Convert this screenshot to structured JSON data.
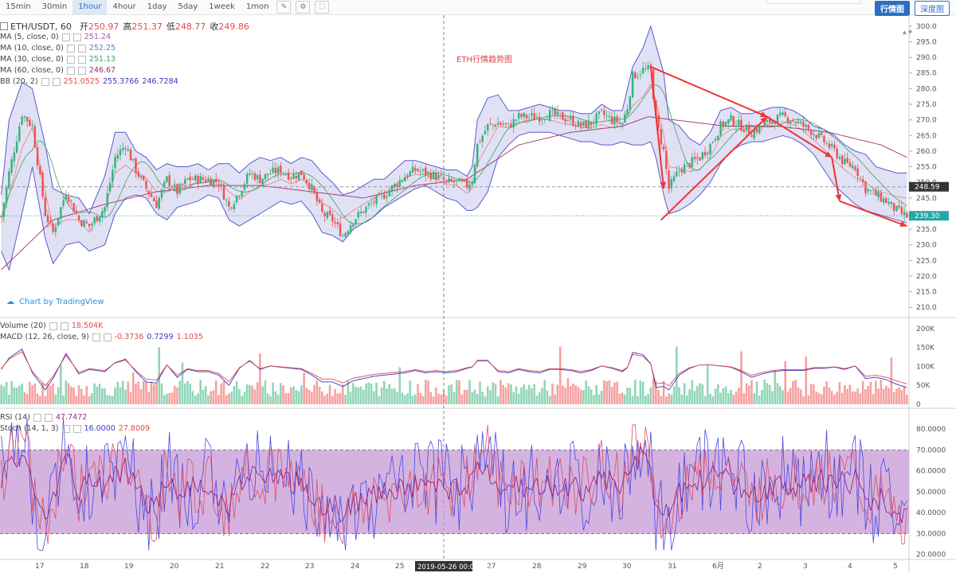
{
  "toolbar": {
    "timeframes": [
      {
        "label": "15min",
        "active": false
      },
      {
        "label": "30min",
        "active": false
      },
      {
        "label": "1hour",
        "active": true
      },
      {
        "label": "4hour",
        "active": false
      },
      {
        "label": "1day",
        "active": false
      },
      {
        "label": "5day",
        "active": false
      },
      {
        "label": "1week",
        "active": false
      },
      {
        "label": "1mon",
        "active": false
      }
    ],
    "icons": [
      "pencil-icon",
      "gear-icon",
      "fullscreen-icon"
    ],
    "right_tabs": [
      {
        "label": "行情图",
        "active": true
      },
      {
        "label": "深度图",
        "active": false
      }
    ]
  },
  "header": {
    "symbol": "ETH/USDT, 60",
    "open_label": "开",
    "open": "250.97",
    "high_label": "高",
    "high": "251.37",
    "low_label": "低",
    "low": "248.77",
    "close_label": "收",
    "close": "249.86"
  },
  "indicators": [
    {
      "name": "MA (5, close, 0)",
      "value": "251.24",
      "color": "#9b59b6"
    },
    {
      "name": "MA (10, close, 0)",
      "value": "252.25",
      "color": "#5a86c4"
    },
    {
      "name": "MA (30, close, 0)",
      "value": "251.13",
      "color": "#3aa55a"
    },
    {
      "name": "MA (60, close, 0)",
      "value": "246.67",
      "color": "#a0306a"
    },
    {
      "name": "BB (20, 2)",
      "values": [
        "251.0525",
        "255.3766",
        "246.7284"
      ],
      "colors": [
        "#e24b4b",
        "#3a3ac4",
        "#3a3ac4"
      ]
    }
  ],
  "volume_legend": {
    "name": "Volume (20)",
    "value": "18.504K",
    "color": "#e24b4b"
  },
  "macd_legend": {
    "name": "MACD (12, 26, close, 9)",
    "values": [
      "-0.3736",
      "0.7299",
      "1.1035"
    ],
    "colors": [
      "#e24b4b",
      "#3a3ac4",
      "#e24b4b"
    ]
  },
  "rsi_legend": {
    "name": "RSI (14)",
    "value": "47.7472",
    "color": "#9b2a8a"
  },
  "stoch_legend": {
    "name": "Stoch (14, 1, 3)",
    "values": [
      "16.0000",
      "27.8009"
    ],
    "colors": [
      "#3a3ac4",
      "#e24b4b"
    ]
  },
  "annotation": "ETH行情趋势图",
  "brand": "Chart by TradingView",
  "price_tags": {
    "hline": "248.59",
    "last": "239.30"
  },
  "crosshair_label": "2019-05-26 00:00:00",
  "colors": {
    "up": "#36b37e",
    "down": "#ef5350",
    "band_fill": "#c9c9ec",
    "band_line": "#5a5ad0",
    "rsi_fill": "#c79ad6",
    "trend": "#ee3333",
    "teal_line": "#2aa6a6"
  },
  "chart_data": {
    "type": "candlestick",
    "x_labels": [
      "17",
      "18",
      "19",
      "20",
      "21",
      "22",
      "23",
      "24",
      "25",
      "26",
      "27",
      "28",
      "29",
      "30",
      "31",
      "6月",
      "2",
      "3",
      "4",
      "5"
    ],
    "price_axis": {
      "ticks": [
        210,
        215,
        220,
        225,
        230,
        235,
        240,
        245,
        250,
        255,
        260,
        265,
        270,
        275,
        280,
        285,
        290,
        295,
        300
      ],
      "range": [
        207,
        302
      ]
    },
    "volume_axis": {
      "ticks": [
        "0",
        "50K",
        "100K",
        "150K",
        "200K"
      ],
      "range": [
        0,
        210000
      ]
    },
    "rsi_axis": {
      "ticks": [
        "20.0000",
        "30.0000",
        "40.0000",
        "50.0000",
        "60.0000",
        "70.0000",
        "80.0000"
      ],
      "range": [
        18,
        88
      ],
      "band": [
        30,
        70
      ]
    },
    "close_path": [
      [
        0,
        239
      ],
      [
        3,
        253
      ],
      [
        8,
        272
      ],
      [
        12,
        268
      ],
      [
        17,
        240
      ],
      [
        20,
        234
      ],
      [
        25,
        247
      ],
      [
        30,
        238
      ],
      [
        34,
        236
      ],
      [
        40,
        242
      ],
      [
        44,
        258
      ],
      [
        48,
        262
      ],
      [
        52,
        254
      ],
      [
        56,
        248
      ],
      [
        60,
        243
      ],
      [
        64,
        251
      ],
      [
        68,
        247
      ],
      [
        72,
        251
      ],
      [
        75,
        251
      ],
      [
        80,
        251
      ],
      [
        84,
        250
      ],
      [
        88,
        242
      ],
      [
        92,
        247
      ],
      [
        96,
        253
      ],
      [
        100,
        251
      ],
      [
        104,
        253
      ],
      [
        108,
        254
      ],
      [
        112,
        252
      ],
      [
        116,
        253
      ],
      [
        120,
        248
      ],
      [
        124,
        240
      ],
      [
        128,
        238
      ],
      [
        132,
        233
      ],
      [
        136,
        238
      ],
      [
        140,
        241
      ],
      [
        144,
        244
      ],
      [
        148,
        246
      ],
      [
        152,
        249
      ],
      [
        156,
        252
      ],
      [
        160,
        254
      ],
      [
        164,
        253
      ],
      [
        168,
        252
      ],
      [
        172,
        250
      ],
      [
        176,
        250
      ],
      [
        180,
        249
      ],
      [
        182,
        251
      ],
      [
        184,
        262
      ],
      [
        188,
        268
      ],
      [
        192,
        269
      ],
      [
        196,
        268
      ],
      [
        200,
        271
      ],
      [
        204,
        271
      ],
      [
        208,
        271
      ],
      [
        212,
        272
      ],
      [
        216,
        271
      ],
      [
        220,
        270
      ],
      [
        224,
        268
      ],
      [
        228,
        269
      ],
      [
        232,
        272
      ],
      [
        236,
        270
      ],
      [
        240,
        269
      ],
      [
        242,
        274
      ],
      [
        244,
        284
      ],
      [
        248,
        286
      ],
      [
        251,
        286
      ],
      [
        253,
        270
      ],
      [
        256,
        260
      ],
      [
        258,
        248
      ],
      [
        262,
        254
      ],
      [
        266,
        256
      ],
      [
        270,
        258
      ],
      [
        274,
        262
      ],
      [
        278,
        268
      ],
      [
        282,
        270
      ],
      [
        286,
        268
      ],
      [
        290,
        266
      ],
      [
        294,
        268
      ],
      [
        298,
        270
      ],
      [
        302,
        271
      ],
      [
        306,
        270
      ],
      [
        310,
        268
      ],
      [
        314,
        266
      ],
      [
        318,
        263
      ],
      [
        322,
        260
      ],
      [
        326,
        256
      ],
      [
        330,
        255
      ],
      [
        334,
        248
      ],
      [
        338,
        246
      ],
      [
        342,
        244
      ],
      [
        346,
        241
      ],
      [
        350,
        239
      ]
    ],
    "bb_upper": [
      [
        0,
        246
      ],
      [
        3,
        270
      ],
      [
        8,
        282
      ],
      [
        12,
        280
      ],
      [
        17,
        262
      ],
      [
        20,
        248
      ],
      [
        25,
        246
      ],
      [
        30,
        245
      ],
      [
        34,
        240
      ],
      [
        40,
        252
      ],
      [
        44,
        266
      ],
      [
        48,
        266
      ],
      [
        52,
        260
      ],
      [
        56,
        258
      ],
      [
        60,
        254
      ],
      [
        64,
        256
      ],
      [
        68,
        255
      ],
      [
        72,
        255
      ],
      [
        76,
        256
      ],
      [
        80,
        254
      ],
      [
        84,
        256
      ],
      [
        88,
        256
      ],
      [
        92,
        253
      ],
      [
        96,
        256
      ],
      [
        100,
        258
      ],
      [
        104,
        257
      ],
      [
        108,
        258
      ],
      [
        112,
        256
      ],
      [
        116,
        258
      ],
      [
        120,
        257
      ],
      [
        124,
        253
      ],
      [
        128,
        250
      ],
      [
        132,
        246
      ],
      [
        136,
        247
      ],
      [
        140,
        249
      ],
      [
        144,
        251
      ],
      [
        148,
        251
      ],
      [
        152,
        254
      ],
      [
        156,
        257
      ],
      [
        160,
        257
      ],
      [
        164,
        256
      ],
      [
        168,
        255
      ],
      [
        172,
        254
      ],
      [
        176,
        254
      ],
      [
        180,
        252
      ],
      [
        182,
        255
      ],
      [
        184,
        270
      ],
      [
        188,
        277
      ],
      [
        192,
        278
      ],
      [
        196,
        273
      ],
      [
        200,
        273
      ],
      [
        204,
        274
      ],
      [
        208,
        275
      ],
      [
        212,
        274
      ],
      [
        216,
        273
      ],
      [
        220,
        273
      ],
      [
        224,
        272
      ],
      [
        228,
        272
      ],
      [
        232,
        275
      ],
      [
        236,
        273
      ],
      [
        240,
        273
      ],
      [
        244,
        287
      ],
      [
        248,
        293
      ],
      [
        251,
        300
      ],
      [
        253,
        294
      ],
      [
        256,
        285
      ],
      [
        258,
        270
      ],
      [
        262,
        268
      ],
      [
        266,
        264
      ],
      [
        270,
        262
      ],
      [
        274,
        266
      ],
      [
        278,
        273
      ],
      [
        282,
        274
      ],
      [
        286,
        272
      ],
      [
        290,
        272
      ],
      [
        294,
        273
      ],
      [
        298,
        274
      ],
      [
        302,
        274
      ],
      [
        306,
        273
      ],
      [
        310,
        271
      ],
      [
        314,
        268
      ],
      [
        318,
        267
      ],
      [
        322,
        265
      ],
      [
        326,
        262
      ],
      [
        330,
        260
      ],
      [
        334,
        259
      ],
      [
        338,
        255
      ],
      [
        342,
        254
      ],
      [
        346,
        253
      ],
      [
        350,
        253
      ]
    ],
    "bb_lower": [
      [
        0,
        228
      ],
      [
        3,
        222
      ],
      [
        8,
        240
      ],
      [
        12,
        255
      ],
      [
        17,
        232
      ],
      [
        20,
        224
      ],
      [
        25,
        230
      ],
      [
        30,
        231
      ],
      [
        34,
        228
      ],
      [
        40,
        230
      ],
      [
        44,
        240
      ],
      [
        48,
        245
      ],
      [
        52,
        246
      ],
      [
        56,
        245
      ],
      [
        60,
        240
      ],
      [
        64,
        238
      ],
      [
        68,
        242
      ],
      [
        72,
        243
      ],
      [
        76,
        244
      ],
      [
        80,
        246
      ],
      [
        84,
        245
      ],
      [
        88,
        238
      ],
      [
        92,
        236
      ],
      [
        96,
        238
      ],
      [
        100,
        240
      ],
      [
        104,
        242
      ],
      [
        108,
        244
      ],
      [
        112,
        243
      ],
      [
        116,
        244
      ],
      [
        120,
        240
      ],
      [
        124,
        234
      ],
      [
        128,
        233
      ],
      [
        132,
        231
      ],
      [
        136,
        235
      ],
      [
        140,
        237
      ],
      [
        144,
        239
      ],
      [
        148,
        242
      ],
      [
        152,
        244
      ],
      [
        156,
        246
      ],
      [
        160,
        248
      ],
      [
        164,
        249
      ],
      [
        168,
        247
      ],
      [
        172,
        245
      ],
      [
        176,
        244
      ],
      [
        180,
        241
      ],
      [
        182,
        241
      ],
      [
        184,
        242
      ],
      [
        188,
        247
      ],
      [
        192,
        258
      ],
      [
        196,
        262
      ],
      [
        200,
        265
      ],
      [
        204,
        266
      ],
      [
        208,
        266
      ],
      [
        212,
        266
      ],
      [
        216,
        265
      ],
      [
        220,
        264
      ],
      [
        224,
        263
      ],
      [
        228,
        263
      ],
      [
        232,
        262
      ],
      [
        236,
        262
      ],
      [
        240,
        263
      ],
      [
        244,
        262
      ],
      [
        248,
        262
      ],
      [
        251,
        263
      ],
      [
        253,
        258
      ],
      [
        256,
        246
      ],
      [
        258,
        240
      ],
      [
        262,
        241
      ],
      [
        266,
        243
      ],
      [
        270,
        246
      ],
      [
        274,
        250
      ],
      [
        278,
        256
      ],
      [
        282,
        260
      ],
      [
        286,
        262
      ],
      [
        290,
        263
      ],
      [
        294,
        263
      ],
      [
        298,
        264
      ],
      [
        302,
        265
      ],
      [
        306,
        264
      ],
      [
        310,
        262
      ],
      [
        314,
        259
      ],
      [
        318,
        254
      ],
      [
        322,
        249
      ],
      [
        326,
        246
      ],
      [
        330,
        243
      ],
      [
        334,
        241
      ],
      [
        338,
        240
      ],
      [
        342,
        239
      ],
      [
        346,
        238
      ],
      [
        350,
        237
      ]
    ],
    "ma60": [
      [
        0,
        222
      ],
      [
        20,
        238
      ],
      [
        40,
        243
      ],
      [
        60,
        247
      ],
      [
        80,
        249
      ],
      [
        100,
        249
      ],
      [
        120,
        247
      ],
      [
        140,
        245
      ],
      [
        160,
        249
      ],
      [
        180,
        251
      ],
      [
        200,
        262
      ],
      [
        220,
        266
      ],
      [
        240,
        268
      ],
      [
        250,
        271
      ],
      [
        260,
        270
      ],
      [
        280,
        268
      ],
      [
        300,
        268
      ],
      [
        320,
        266
      ],
      [
        340,
        262
      ],
      [
        350,
        258
      ]
    ],
    "hline": 248.59,
    "last": 239.3,
    "trend_lines": [
      [
        [
          251,
          287
        ],
        [
          296,
          271
        ]
      ],
      [
        [
          255,
          238
        ],
        [
          296,
          271
        ]
      ],
      [
        [
          251,
          287
        ],
        [
          256,
          248
        ]
      ],
      [
        [
          296,
          271
        ],
        [
          321,
          258
        ]
      ],
      [
        [
          321,
          258
        ],
        [
          324,
          244
        ]
      ],
      [
        [
          324,
          244
        ],
        [
          350,
          236
        ]
      ]
    ],
    "n_candles": 351
  }
}
